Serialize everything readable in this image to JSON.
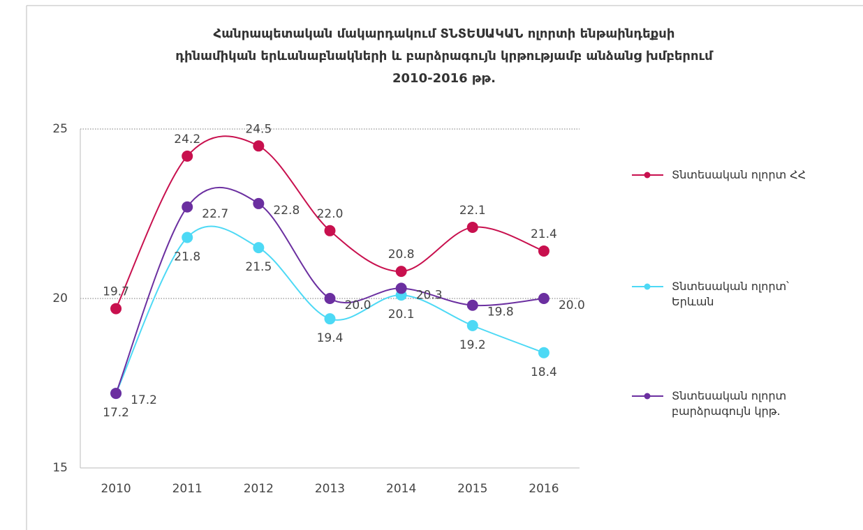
{
  "chart_data": {
    "type": "line",
    "title": [
      "Հանրապետական մակարդակում ՏՆՏԵՍԱԿԱՆ ոլորտի ենթաինդեքսի",
      "դինամիկան երևանաբնակների և բարձրագույն կրթությամբ անձանց խմբերում",
      "2010-2016 թթ."
    ],
    "categories": [
      "2010",
      "2011",
      "2012",
      "2013",
      "2014",
      "2015",
      "2016"
    ],
    "series": [
      {
        "name": "Տնտեսական ոլորտ ՀՀ",
        "color": "#c8104e",
        "values": [
          19.7,
          24.2,
          24.5,
          22.0,
          20.8,
          22.1,
          21.4
        ],
        "value_labels": [
          "19.7",
          "24.2",
          "24.5",
          "22.0",
          "20.8",
          "22.1",
          "21.4"
        ]
      },
      {
        "name": "Տնտեսական ոլորտ՝ Երևան",
        "color": "#4dd9f5",
        "values": [
          17.2,
          21.8,
          21.5,
          19.4,
          20.1,
          19.2,
          18.4
        ],
        "value_labels": [
          "17.2",
          "21.8",
          "21.5",
          "19.4",
          "20.1",
          "19.2",
          "18.4"
        ]
      },
      {
        "name": "Տնտեսական ոլորտ բարձրագույն կրթ.",
        "color": "#6b2fa0",
        "values": [
          17.2,
          22.7,
          22.8,
          20.0,
          20.3,
          19.8,
          20.0
        ],
        "value_labels": [
          "17.2",
          "22.7",
          "22.8",
          "20.0",
          "20.3",
          "19.8",
          "20.0"
        ]
      }
    ],
    "ylim": [
      15,
      25
    ],
    "yticks": [
      15,
      20,
      25
    ],
    "grid": true,
    "legend": "right"
  }
}
